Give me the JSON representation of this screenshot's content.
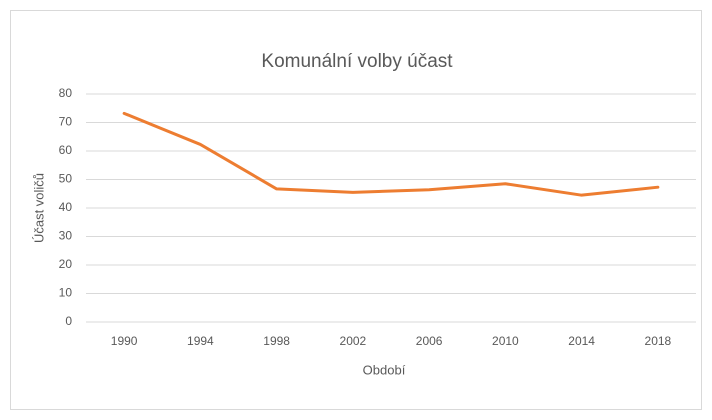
{
  "chart_data": {
    "type": "line",
    "title": "Komunální volby účast",
    "x_label": "Období",
    "y_label": "Účast voličů",
    "categories": [
      "1990",
      "1994",
      "1998",
      "2002",
      "2006",
      "2010",
      "2014",
      "2018"
    ],
    "series": [
      {
        "name": "Účast voličů",
        "color": "#ed7d31",
        "values": [
          73.2,
          62.3,
          46.7,
          45.5,
          46.4,
          48.5,
          44.5,
          47.3
        ]
      }
    ],
    "ylim": [
      0,
      80
    ],
    "yticks": [
      0,
      10,
      20,
      30,
      40,
      50,
      60,
      70,
      80
    ],
    "grid": true
  }
}
